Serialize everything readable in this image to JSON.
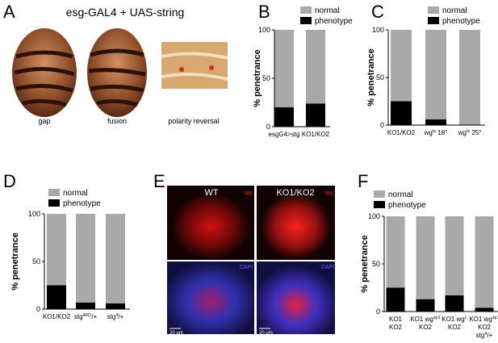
{
  "panels": {
    "a": "A",
    "b": "B",
    "c": "C",
    "d": "D",
    "e": "E",
    "f": "F"
  },
  "panel_a": {
    "title": "esg-GAL4 + UAS-string",
    "labels": [
      "gap",
      "fusion",
      "polarity reversal"
    ]
  },
  "panel_e": {
    "columns": [
      "WT",
      "KO1/KO2"
    ],
    "channels": [
      "wg",
      "DAPI"
    ],
    "scale_bar": "20 µm"
  },
  "chart_data": [
    {
      "type": "bar",
      "stacked": true,
      "ylabel": "% penetrance",
      "categories": [
        [
          [
            "esgG4>stg"
          ]
        ],
        [
          [
            "KO1/KO2"
          ]
        ]
      ],
      "series": [
        {
          "name": "normal",
          "color": "#a9a9a9",
          "values": [
            80,
            76
          ]
        },
        {
          "name": "phenotype",
          "color": "#000000",
          "values": [
            20,
            24
          ]
        }
      ],
      "ylim": [
        0,
        100
      ],
      "yticks": [
        0,
        50,
        100
      ]
    },
    {
      "type": "bar",
      "stacked": true,
      "ylabel": "% penetrance",
      "categories": [
        [
          [
            "KO1/KO2"
          ]
        ],
        [
          [
            "wg",
            "ts",
            " 18°"
          ]
        ],
        [
          [
            "wg",
            "ts",
            " 25°"
          ]
        ]
      ],
      "series": [
        {
          "name": "normal",
          "color": "#a9a9a9",
          "values": [
            75,
            94,
            100
          ]
        },
        {
          "name": "phenotype",
          "color": "#000000",
          "values": [
            25,
            6,
            0
          ]
        }
      ],
      "ylim": [
        0,
        100
      ],
      "yticks": [
        0,
        50,
        100
      ]
    },
    {
      "type": "bar",
      "stacked": true,
      "ylabel": "% penetrance",
      "categories": [
        [
          [
            "KO1/KO2"
          ]
        ],
        [
          [
            "stg",
            "AR2",
            "/+"
          ]
        ],
        [
          [
            "stg",
            "4",
            "/+"
          ]
        ]
      ],
      "series": [
        {
          "name": "normal",
          "color": "#a9a9a9",
          "values": [
            75,
            93,
            94
          ]
        },
        {
          "name": "phenotype",
          "color": "#000000",
          "values": [
            25,
            7,
            6
          ]
        }
      ],
      "ylim": [
        0,
        100
      ],
      "yticks": [
        0,
        50,
        100
      ]
    },
    {
      "type": "bar",
      "stacked": true,
      "ylabel": "% penetrance",
      "categories": [
        [
          [
            "KO1"
          ],
          [
            "KO2"
          ]
        ],
        [
          [
            "KO1 wg",
            "sp1"
          ],
          [
            "KO2"
          ]
        ],
        [
          [
            "KO1 wg",
            "L"
          ],
          [
            "KO2"
          ]
        ],
        [
          [
            "KO1 wg",
            "sp1"
          ],
          [
            "KO2"
          ],
          [
            "stg",
            "4",
            "/+"
          ]
        ]
      ],
      "series": [
        {
          "name": "normal",
          "color": "#a9a9a9",
          "values": [
            75,
            87,
            83,
            96
          ]
        },
        {
          "name": "phenotype",
          "color": "#000000",
          "values": [
            25,
            13,
            17,
            4
          ]
        }
      ],
      "ylim": [
        0,
        100
      ],
      "yticks": [
        0,
        50,
        100
      ]
    }
  ]
}
